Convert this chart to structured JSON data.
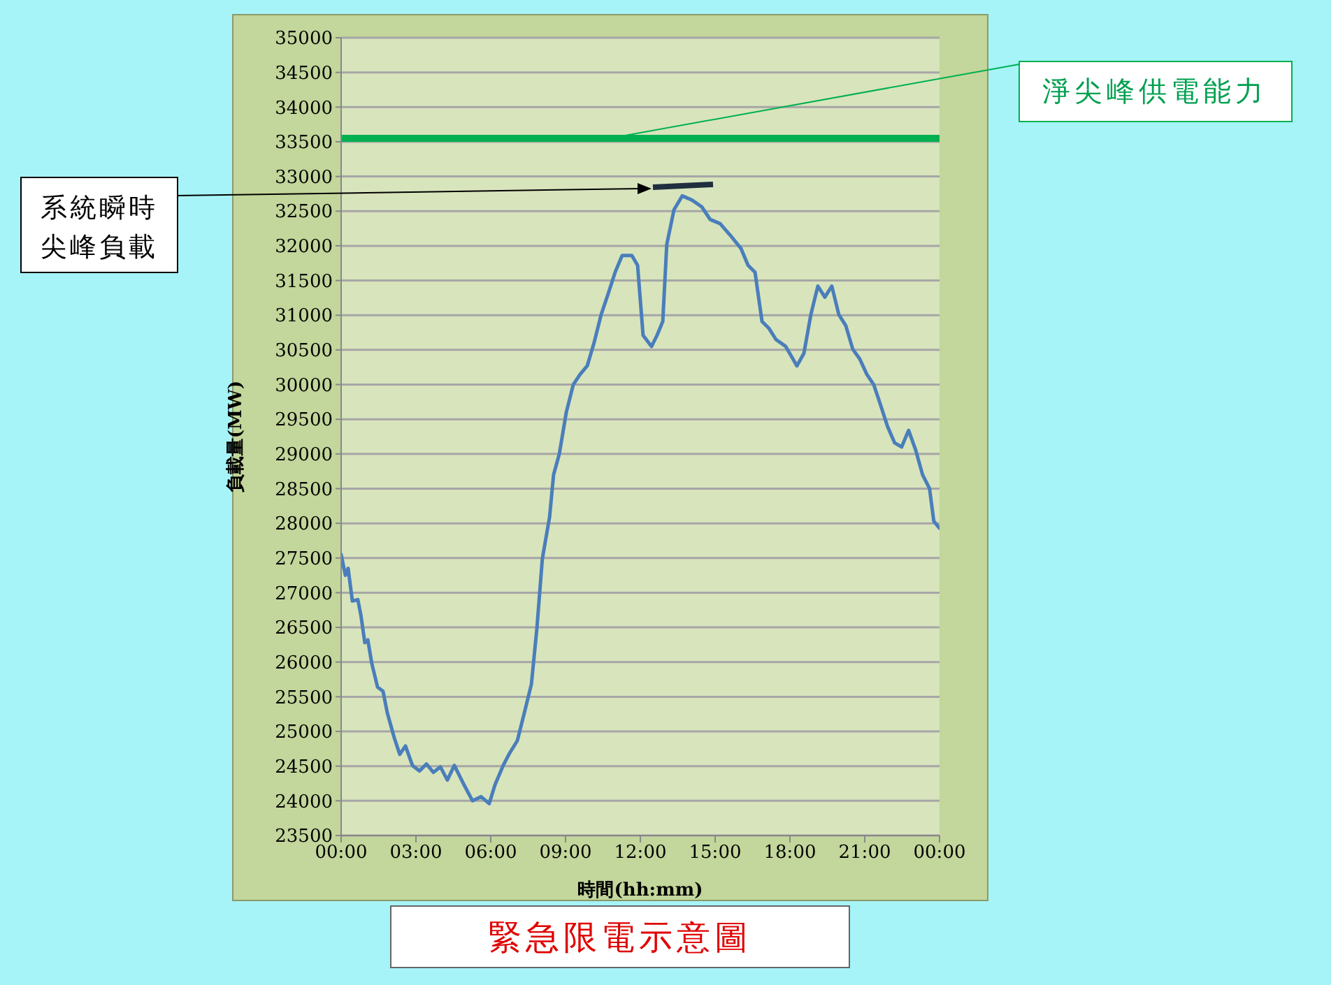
{
  "chart_data": {
    "type": "line",
    "title": "緊急限電示意圖",
    "xlabel": "時間(hh:mm)",
    "ylabel": "負載量(MW)",
    "x": [
      0,
      0.17,
      0.28,
      0.45,
      0.67,
      0.79,
      0.95,
      1.07,
      1.23,
      1.46,
      1.68,
      1.85,
      2.13,
      2.35,
      2.58,
      2.86,
      3.14,
      3.42,
      3.7,
      3.98,
      4.26,
      4.54,
      4.93,
      5.27,
      5.61,
      5.94,
      6.17,
      6.5,
      6.73,
      7.07,
      7.35,
      7.63,
      7.85,
      8.07,
      8.36,
      8.52,
      8.75,
      9.03,
      9.31,
      9.59,
      9.87,
      10.15,
      10.43,
      10.71,
      10.99,
      11.27,
      11.66,
      11.89,
      12.11,
      12.45,
      12.67,
      12.9,
      13.06,
      13.35,
      13.68,
      14.07,
      14.47,
      14.8,
      15.2,
      15.59,
      16.04,
      16.32,
      16.6,
      16.88,
      17.16,
      17.44,
      17.83,
      18.28,
      18.56,
      18.84,
      19.12,
      19.4,
      19.68,
      19.96,
      20.24,
      20.52,
      20.8,
      21.08,
      21.36,
      21.64,
      21.91,
      22.2,
      22.48,
      22.76,
      23.04,
      23.32,
      23.6,
      23.77,
      24
    ],
    "series": [
      {
        "color": "#4a7ebb",
        "values": [
          27550,
          27250,
          27350,
          26880,
          26900,
          26680,
          26280,
          26320,
          25980,
          25640,
          25580,
          25270,
          24910,
          24670,
          24790,
          24510,
          24430,
          24530,
          24410,
          24490,
          24300,
          24510,
          24230,
          24000,
          24060,
          23960,
          24230,
          24510,
          24670,
          24870,
          25270,
          25680,
          26480,
          27490,
          28090,
          28700,
          29000,
          29600,
          30000,
          30150,
          30270,
          30610,
          31010,
          31310,
          31620,
          31860,
          31860,
          31720,
          30710,
          30550,
          30710,
          30910,
          32020,
          32520,
          32720,
          32660,
          32560,
          32380,
          32320,
          32160,
          31960,
          31720,
          31620,
          30910,
          30810,
          30650,
          30550,
          30270,
          30450,
          31010,
          31420,
          31260,
          31420,
          31010,
          30850,
          30510,
          30370,
          30150,
          30000,
          29700,
          29400,
          29160,
          29100,
          29340,
          29060,
          28700,
          28500,
          28030,
          27930
        ]
      }
    ],
    "xlim": [
      0,
      24
    ],
    "xticks": [
      {
        "value": 0,
        "label": "00:00"
      },
      {
        "value": 3,
        "label": "03:00"
      },
      {
        "value": 6,
        "label": "06:00"
      },
      {
        "value": 9,
        "label": "09:00"
      },
      {
        "value": 12,
        "label": "12:00"
      },
      {
        "value": 15,
        "label": "15:00"
      },
      {
        "value": 18,
        "label": "18:00"
      },
      {
        "value": 21,
        "label": "21:00"
      },
      {
        "value": 24,
        "label": "00:00"
      }
    ],
    "ylim": [
      23500,
      35000
    ],
    "yticks": [
      23500,
      24000,
      24500,
      25000,
      25500,
      26000,
      26500,
      27000,
      27500,
      28000,
      28500,
      29000,
      29500,
      30000,
      30500,
      31000,
      31500,
      32000,
      32500,
      33000,
      33500,
      34000,
      34500,
      35000
    ],
    "grid": "y",
    "ref_lines": [
      {
        "axis": "y",
        "value": 33550,
        "label": "淨尖峰供電能力",
        "color": "#00b050"
      }
    ],
    "annotations": [
      "系統瞬時尖峰負載"
    ]
  }
}
